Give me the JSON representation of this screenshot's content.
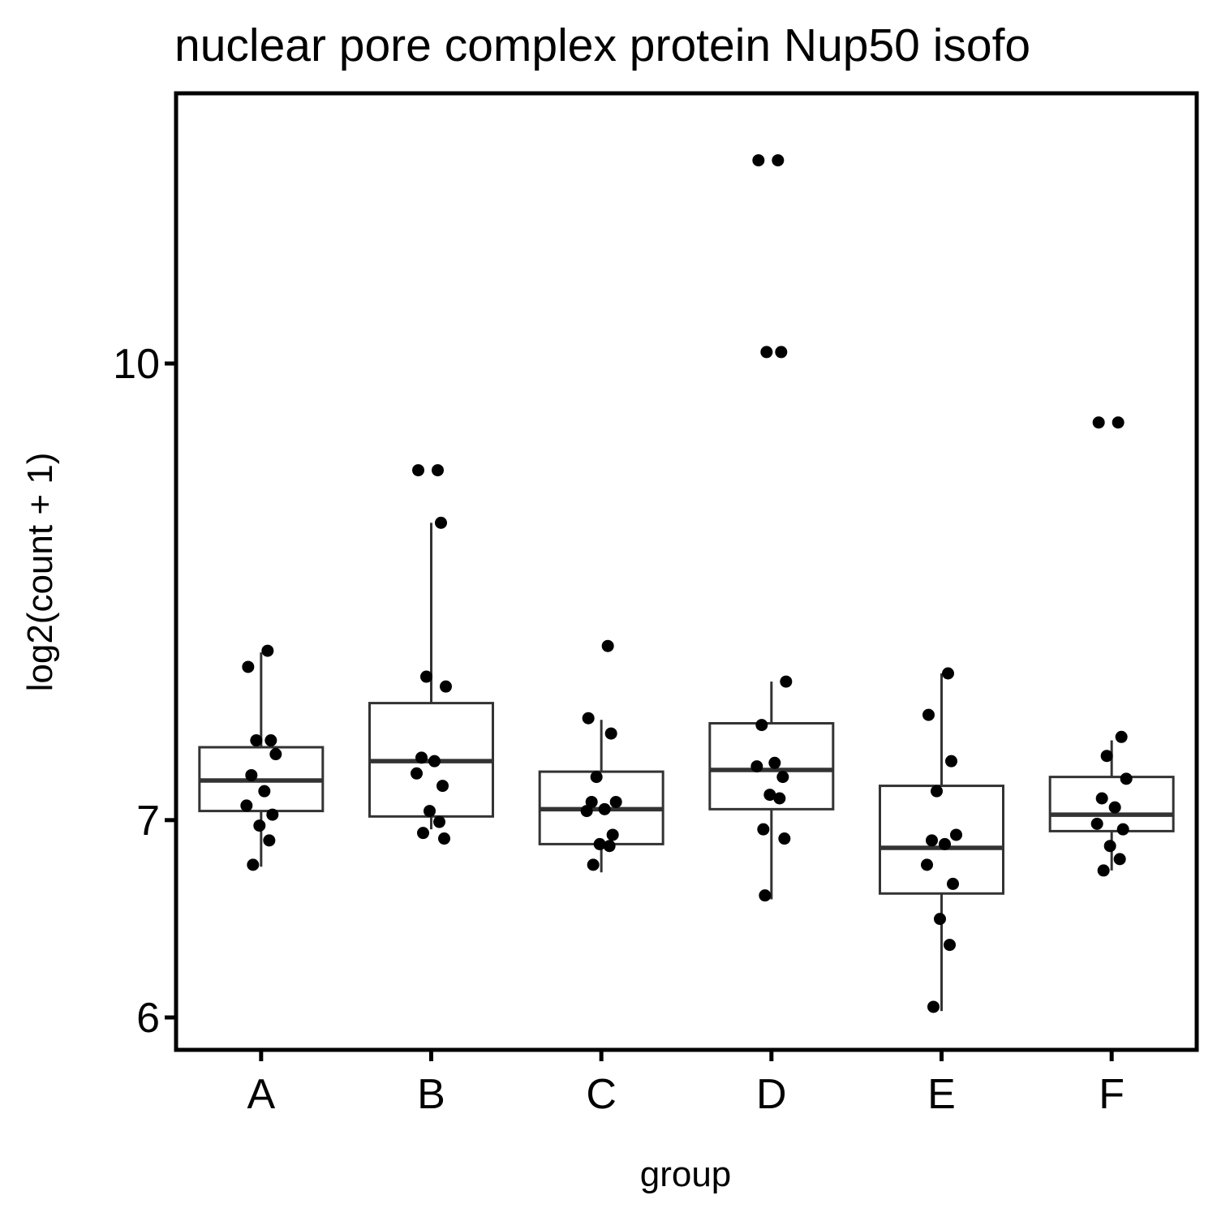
{
  "chart_data": {
    "type": "box",
    "title": "nuclear pore complex protein Nup50 isofo",
    "xlabel": "group",
    "ylabel": "log2(count + 1)",
    "y_scale": "log",
    "ylim": [
      5.85,
      12.35
    ],
    "y_ticks": [
      6,
      7,
      10
    ],
    "y_tick_labels": [
      "6",
      "7",
      "10"
    ],
    "categories": [
      "A",
      "B",
      "C",
      "D",
      "E",
      "F"
    ],
    "box_color": "#333333",
    "point_color": "#000000",
    "boxes": [
      {
        "group": "A",
        "lower_whisker": 6.75,
        "q1": 7.05,
        "median": 7.22,
        "q3": 7.41,
        "upper_whisker": 7.98
      },
      {
        "group": "B",
        "lower_whisker": 6.95,
        "q1": 7.02,
        "median": 7.33,
        "q3": 7.67,
        "upper_whisker": 8.83
      },
      {
        "group": "C",
        "lower_whisker": 6.72,
        "q1": 6.87,
        "median": 7.06,
        "q3": 7.27,
        "upper_whisker": 7.57
      },
      {
        "group": "D",
        "lower_whisker": 6.58,
        "q1": 7.06,
        "median": 7.28,
        "q3": 7.55,
        "upper_whisker": 7.8
      },
      {
        "group": "E",
        "lower_whisker": 6.03,
        "q1": 6.61,
        "median": 6.85,
        "q3": 7.19,
        "upper_whisker": 7.85
      },
      {
        "group": "F",
        "lower_whisker": 6.73,
        "q1": 6.94,
        "median": 7.03,
        "q3": 7.24,
        "upper_whisker": 7.45
      }
    ],
    "points": [
      {
        "group": "A",
        "values": [
          7.99,
          7.89,
          7.45,
          7.45,
          7.37,
          7.25,
          7.16,
          7.08,
          7.03,
          6.97,
          6.89,
          6.76
        ]
      },
      {
        "group": "B",
        "values": [
          9.2,
          9.2,
          8.83,
          7.83,
          7.77,
          7.35,
          7.33,
          7.26,
          7.19,
          7.05,
          6.99,
          6.93,
          6.9
        ]
      },
      {
        "group": "C",
        "values": [
          8.02,
          7.58,
          7.49,
          7.24,
          7.1,
          7.1,
          7.06,
          7.05,
          6.92,
          6.87,
          6.86,
          6.76
        ]
      },
      {
        "group": "D",
        "values": [
          11.72,
          11.72,
          10.09,
          10.09,
          7.8,
          7.54,
          7.32,
          7.3,
          7.24,
          7.14,
          7.12,
          6.95,
          6.9,
          6.6
        ]
      },
      {
        "group": "E",
        "values": [
          7.85,
          7.6,
          7.33,
          7.16,
          6.92,
          6.89,
          6.87,
          6.76,
          6.66,
          6.48,
          6.35,
          6.05
        ]
      },
      {
        "group": "F",
        "values": [
          9.55,
          9.55,
          7.47,
          7.36,
          7.23,
          7.12,
          7.07,
          6.98,
          6.95,
          6.86,
          6.79,
          6.73
        ]
      }
    ]
  }
}
